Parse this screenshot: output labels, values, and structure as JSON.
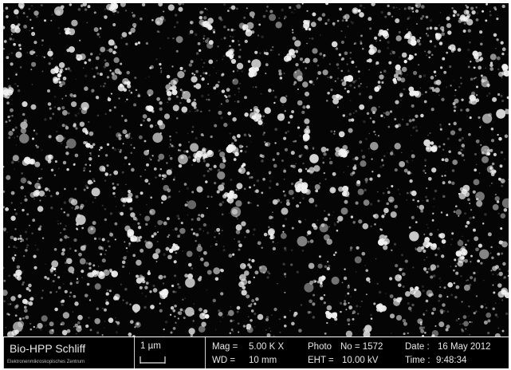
{
  "databar": {
    "instrument_title": "Bio-HPP Schliff",
    "facility": "Elektronenmikroskopisches Zentrum",
    "scale_bar": "1 µm",
    "mag_label": "Mag =",
    "mag_value": "5.00 K X",
    "wd_label": "WD =",
    "wd_value": "10 mm",
    "photo_label": "Photo",
    "photo_no": "No = 1572",
    "eht_label": "EHT =",
    "eht_value": "10.00 kV",
    "date_label": "Date :",
    "date_value": "16 May 2012",
    "time_label": "Time :",
    "time_value": "9:48:34"
  },
  "colors": {
    "background": "#050505",
    "particles": "#d8d8d8",
    "frame": "#ffffff"
  }
}
